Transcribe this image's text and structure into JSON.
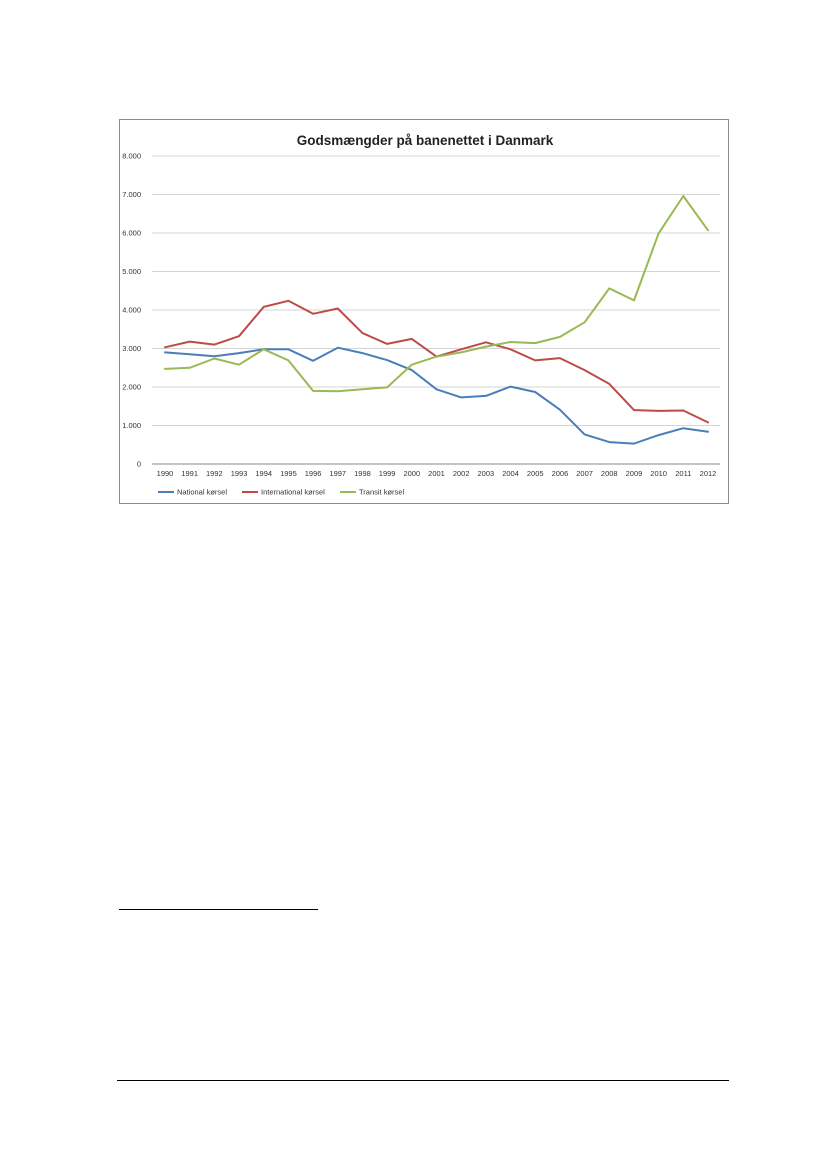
{
  "chart_data": {
    "type": "line",
    "title": "Godsmængder på banenettet i Danmark",
    "xlabel": "",
    "ylabel": "",
    "ylim": [
      0,
      8000
    ],
    "y_ticks": [
      0,
      1000,
      2000,
      3000,
      4000,
      5000,
      6000,
      7000,
      8000
    ],
    "y_tick_labels": [
      "0",
      "1.000",
      "2.000",
      "3.000",
      "4.000",
      "5.000",
      "6.000",
      "7.000",
      "8.000"
    ],
    "grid": true,
    "legend_position": "bottom-left",
    "categories": [
      "1990",
      "1991",
      "1992",
      "1993",
      "1994",
      "1995",
      "1996",
      "1997",
      "1998",
      "1999",
      "2000",
      "2001",
      "2002",
      "2003",
      "2004",
      "2005",
      "2006",
      "2007",
      "2008",
      "2009",
      "2010",
      "2011",
      "2012"
    ],
    "series": [
      {
        "name": "National kørsel",
        "color": "#4a7ebb",
        "values": [
          2900,
          2850,
          2800,
          2880,
          2980,
          2980,
          2680,
          3020,
          2880,
          2700,
          2440,
          1940,
          1730,
          1770,
          2010,
          1870,
          1410,
          770,
          570,
          530,
          750,
          930,
          840
        ]
      },
      {
        "name": "International kørsel",
        "color": "#be4b48",
        "values": [
          3030,
          3180,
          3100,
          3320,
          4080,
          4240,
          3900,
          4040,
          3400,
          3120,
          3250,
          2790,
          2980,
          3160,
          2980,
          2690,
          2750,
          2440,
          2080,
          1400,
          1380,
          1390,
          1080
        ]
      },
      {
        "name": "Transit kørsel",
        "color": "#98b954",
        "values": [
          2470,
          2500,
          2740,
          2580,
          2980,
          2690,
          1900,
          1890,
          1940,
          1990,
          2580,
          2790,
          2900,
          3050,
          3170,
          3140,
          3300,
          3680,
          4560,
          4250,
          5990,
          6960,
          6070
        ]
      }
    ]
  }
}
